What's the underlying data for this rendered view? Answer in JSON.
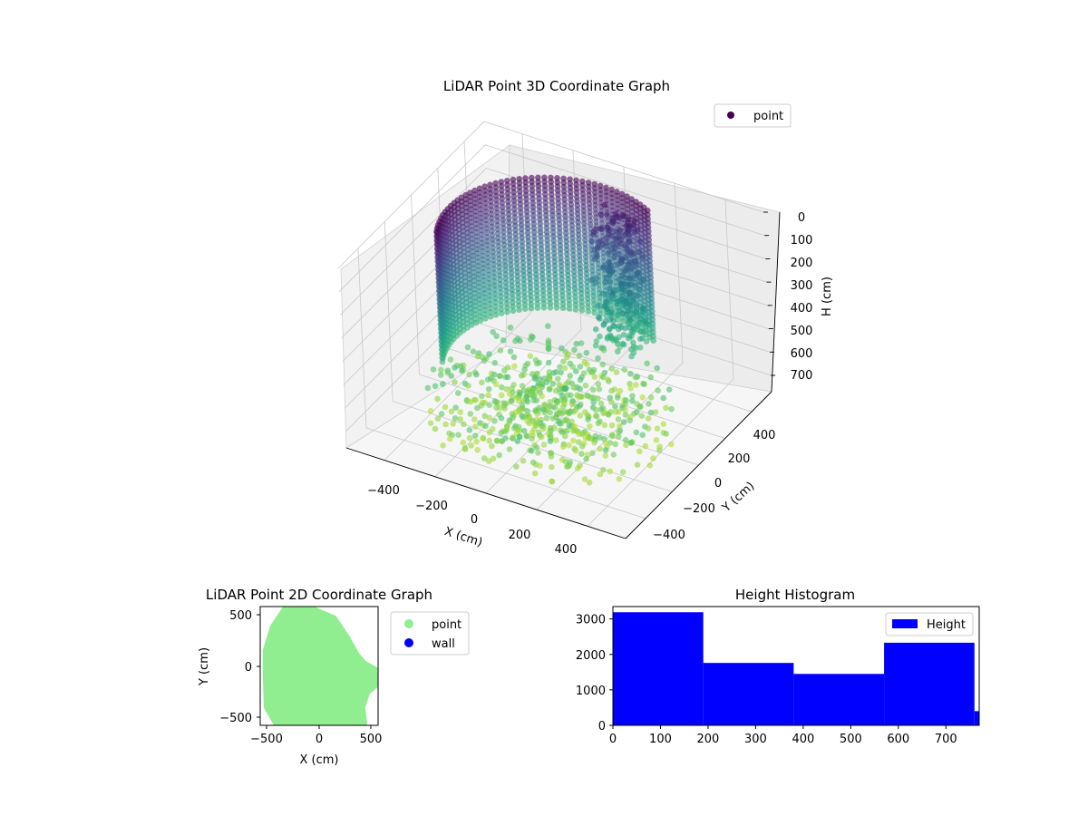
{
  "chart_data": [
    {
      "type": "scatter",
      "projection": "3d",
      "title": "LiDAR Point 3D Coordinate Graph",
      "xlabel": "X (cm)",
      "ylabel": "Y (cm)",
      "zlabel": "H (cm)",
      "xlim": [
        -550,
        550
      ],
      "ylim": [
        -550,
        550
      ],
      "zlim": [
        770,
        0
      ],
      "z_axis_inverted": true,
      "xticks": [
        "−400",
        "−200",
        "0",
        "200",
        "400"
      ],
      "yticks": [
        "−400",
        "−200",
        "0",
        "200",
        "400"
      ],
      "zticks": [
        "0",
        "100",
        "200",
        "300",
        "400",
        "500",
        "600",
        "700"
      ],
      "colormap": "viridis",
      "legend": {
        "position": "top-right",
        "entries": [
          {
            "name": "point",
            "color": "#440154"
          }
        ]
      },
      "series": [
        {
          "name": "point",
          "description_of_shape": "curved wall of points forming an arc from about (-350,150) to (50,400), with a cluster of points around (100,250) and a dense floor spread near x in [-300,300], y in [-300,200]",
          "wall_arc": {
            "center_x": 0,
            "center_y": 0,
            "radius": 400,
            "angle_start_deg": 60,
            "angle_end_deg": 205,
            "h_range": [
              0,
              770
            ]
          },
          "inner_cluster": {
            "x": 100,
            "y": 300,
            "h_range": [
              30,
              600
            ]
          },
          "floor_spread": {
            "x_range": [
              -450,
              450
            ],
            "y_range": [
              -450,
              350
            ],
            "h_range": [
              600,
              770
            ]
          }
        }
      ]
    },
    {
      "type": "scatter",
      "title": "LiDAR Point 2D Coordinate Graph",
      "xlabel": "X (cm)",
      "ylabel": "Y (cm)",
      "xlim": [
        -580,
        560
      ],
      "ylim": [
        -580,
        580
      ],
      "xticks": [
        "−500",
        "0",
        "500"
      ],
      "yticks": [
        "−500",
        "0",
        "500"
      ],
      "legend": {
        "position": "outside-right",
        "entries": [
          {
            "name": "point",
            "color": "#90ee90"
          },
          {
            "name": "wall",
            "color": "#0000ff"
          }
        ]
      },
      "series": [
        {
          "name": "point",
          "color": "#90ee90",
          "outline": [
            [
              -330,
              560
            ],
            [
              -100,
              560
            ],
            [
              130,
              460
            ],
            [
              250,
              280
            ],
            [
              350,
              100
            ],
            [
              420,
              20
            ],
            [
              560,
              -60
            ],
            [
              560,
              -160
            ],
            [
              450,
              -250
            ],
            [
              400,
              -400
            ],
            [
              420,
              -560
            ],
            [
              -420,
              -560
            ],
            [
              -510,
              -400
            ],
            [
              -520,
              -100
            ],
            [
              -520,
              150
            ],
            [
              -450,
              380
            ],
            [
              -330,
              560
            ]
          ]
        },
        {
          "name": "wall",
          "color": "#0000ff",
          "points": []
        }
      ]
    },
    {
      "type": "bar",
      "subtype": "histogram",
      "title": "Height Histogram",
      "xlim": [
        0,
        770
      ],
      "ylim": [
        0,
        3350
      ],
      "xticks": [
        0,
        100,
        200,
        300,
        400,
        500,
        600,
        700
      ],
      "yticks": [
        0,
        1000,
        2000,
        3000
      ],
      "legend": {
        "position": "top-right",
        "entries": [
          {
            "name": "Height",
            "color": "#0000ff"
          }
        ]
      },
      "series": [
        {
          "name": "Height",
          "color": "#0000ff",
          "bins": [
            {
              "start": 0,
              "end": 190,
              "count": 3190
            },
            {
              "start": 190,
              "end": 380,
              "count": 1760
            },
            {
              "start": 380,
              "end": 570,
              "count": 1450
            },
            {
              "start": 570,
              "end": 760,
              "count": 2330
            },
            {
              "start": 760,
              "end": 770,
              "count": 400
            }
          ]
        }
      ]
    }
  ]
}
